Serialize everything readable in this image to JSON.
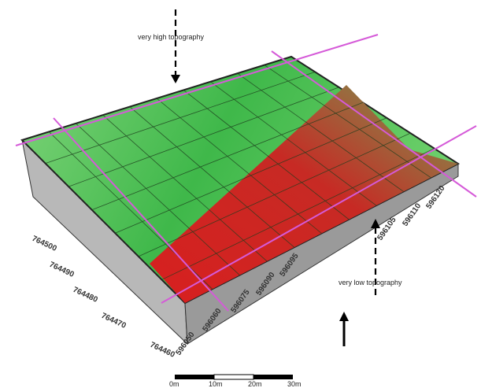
{
  "annotations": {
    "high": "very high topography",
    "low": "very low topography"
  },
  "northing_labels": [
    "764500",
    "764490",
    "764480",
    "764470",
    "764460"
  ],
  "easting_labels": [
    "596050",
    "596060",
    "596075",
    "596090",
    "596095",
    "596105",
    "596110",
    "596120"
  ],
  "scale_labels": [
    "0m",
    "10m",
    "20m",
    "30m"
  ]
}
